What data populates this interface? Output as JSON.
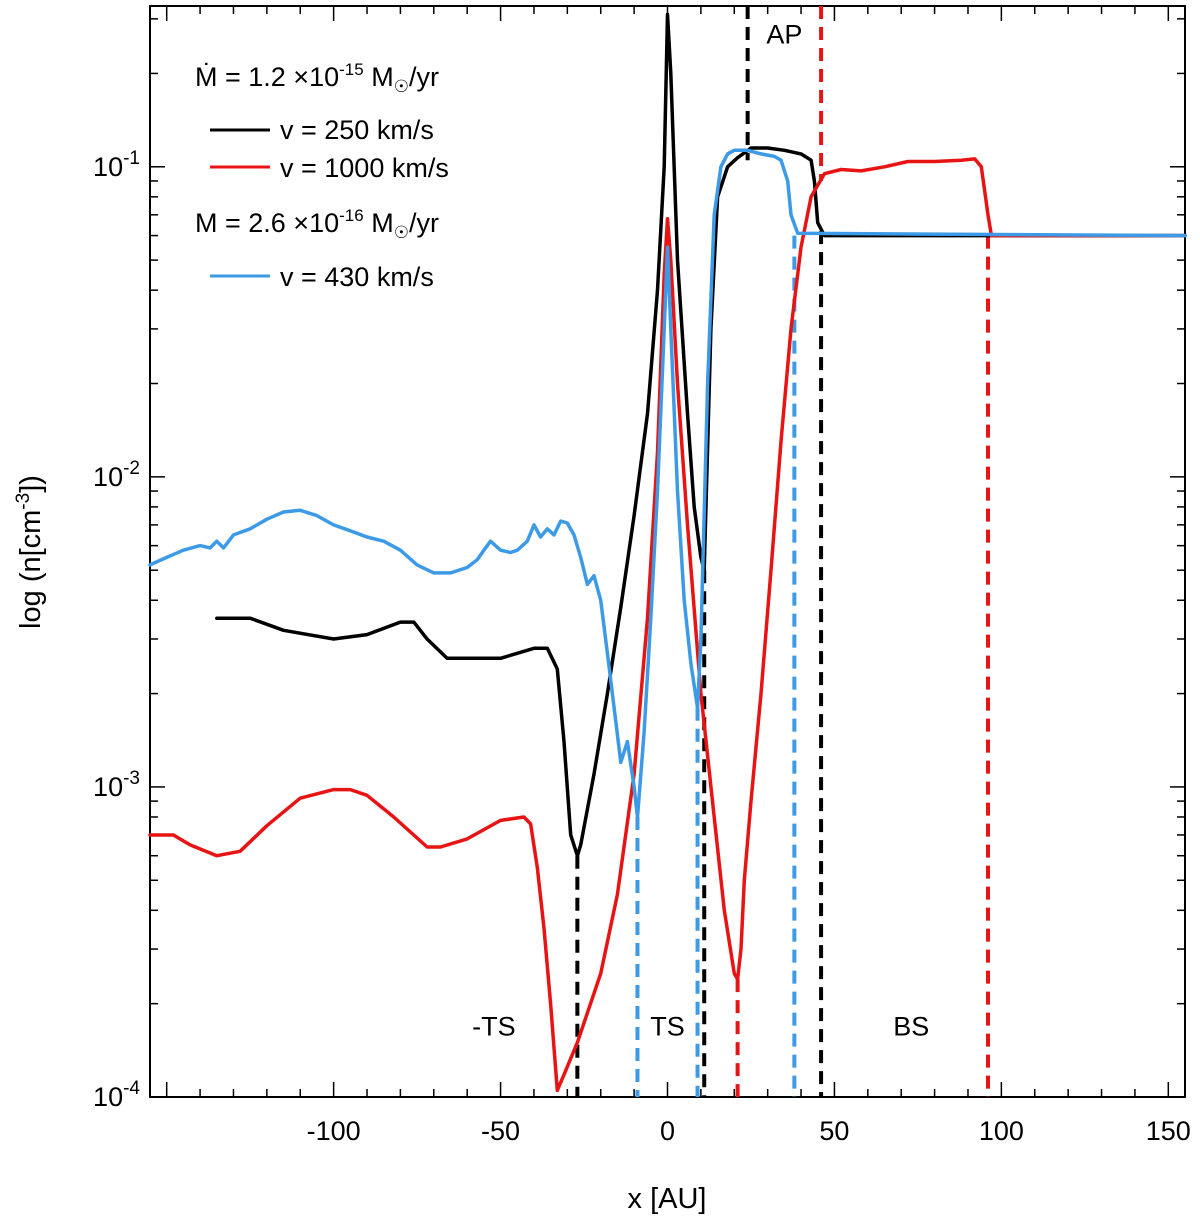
{
  "chart_data": {
    "type": "line",
    "xlabel": "x [AU]",
    "ylabel": "log (n[cm-3])",
    "ylabel_parts": {
      "main": "log (n[cm",
      "sup": "-3",
      "tail": "])"
    },
    "xlim": [
      -155,
      155
    ],
    "ylim": [
      0.0001,
      0.33
    ],
    "yscale": "log",
    "grid": false,
    "x_ticks": [
      -100,
      -50,
      0,
      50,
      100,
      150
    ],
    "x_tick_labels": [
      "-100",
      "-50",
      "0",
      "50",
      "100",
      "150"
    ],
    "y_ticks": [
      {
        "value": 0.1,
        "base": "10",
        "exp": "-1"
      },
      {
        "value": 0.01,
        "base": "10",
        "exp": "-2"
      },
      {
        "value": 0.001,
        "base": "10",
        "exp": "-3"
      },
      {
        "value": 0.0001,
        "base": "10",
        "exp": "-4"
      }
    ],
    "legend": {
      "position": "top-left",
      "groups": [
        {
          "prefix": "Ṁ = 1.2 ×10",
          "exp": "-15",
          "suffix": " M",
          "sun": "☉",
          "end": "/yr"
        },
        {
          "prefix": "M = 2.6 ×10",
          "exp": "-16",
          "suffix": " M",
          "sun": "☉",
          "end": "/yr"
        }
      ]
    },
    "series": [
      {
        "name": "v = 250 km/s",
        "color": "#000000",
        "points": [
          [
            -135,
            0.0035
          ],
          [
            -125,
            0.0035
          ],
          [
            -115,
            0.0032
          ],
          [
            -100,
            0.003
          ],
          [
            -90,
            0.0031
          ],
          [
            -80,
            0.0034
          ],
          [
            -76,
            0.0034
          ],
          [
            -72,
            0.003
          ],
          [
            -66,
            0.0026
          ],
          [
            -50,
            0.0026
          ],
          [
            -40,
            0.0028
          ],
          [
            -36,
            0.0028
          ],
          [
            -33,
            0.0024
          ],
          [
            -31,
            0.0014
          ],
          [
            -29,
            0.0007
          ],
          [
            -27,
            0.0006
          ],
          [
            -26,
            0.00065
          ],
          [
            -22,
            0.0011
          ],
          [
            -18,
            0.002
          ],
          [
            -14,
            0.0038
          ],
          [
            -10,
            0.0075
          ],
          [
            -6,
            0.016
          ],
          [
            -3,
            0.04
          ],
          [
            -1,
            0.1
          ],
          [
            0,
            0.31
          ],
          [
            1,
            0.2
          ],
          [
            3,
            0.05
          ],
          [
            6,
            0.016
          ],
          [
            8,
            0.008
          ],
          [
            10,
            0.0055
          ],
          [
            11,
            0.005
          ],
          [
            13,
            0.03
          ],
          [
            15,
            0.08
          ],
          [
            18,
            0.1
          ],
          [
            21,
            0.107
          ],
          [
            25,
            0.115
          ],
          [
            30,
            0.115
          ],
          [
            35,
            0.113
          ],
          [
            40,
            0.11
          ],
          [
            43,
            0.105
          ],
          [
            44,
            0.09
          ],
          [
            45,
            0.066
          ],
          [
            47,
            0.06
          ],
          [
            155,
            0.06
          ]
        ]
      },
      {
        "name": "v = 1000 km/s",
        "color": "#e81414",
        "points": [
          [
            -155,
            0.0007
          ],
          [
            -148,
            0.0007
          ],
          [
            -143,
            0.00065
          ],
          [
            -135,
            0.0006
          ],
          [
            -128,
            0.00062
          ],
          [
            -120,
            0.00075
          ],
          [
            -110,
            0.00092
          ],
          [
            -100,
            0.00098
          ],
          [
            -95,
            0.00098
          ],
          [
            -90,
            0.00094
          ],
          [
            -82,
            0.0008
          ],
          [
            -72,
            0.00064
          ],
          [
            -68,
            0.00064
          ],
          [
            -60,
            0.00068
          ],
          [
            -50,
            0.00078
          ],
          [
            -43,
            0.0008
          ],
          [
            -41,
            0.00076
          ],
          [
            -39,
            0.00055
          ],
          [
            -37,
            0.00035
          ],
          [
            -35,
            0.0002
          ],
          [
            -33,
            0.000105
          ],
          [
            -31,
            0.000118
          ],
          [
            -27,
            0.00015
          ],
          [
            -20,
            0.00025
          ],
          [
            -15,
            0.00045
          ],
          [
            -10,
            0.0011
          ],
          [
            -6,
            0.0035
          ],
          [
            -3,
            0.012
          ],
          [
            -1,
            0.045
          ],
          [
            0,
            0.068
          ],
          [
            1,
            0.05
          ],
          [
            3,
            0.02
          ],
          [
            6,
            0.007
          ],
          [
            10,
            0.002
          ],
          [
            14,
            0.0008
          ],
          [
            17,
            0.0004
          ],
          [
            20,
            0.00025
          ],
          [
            21,
            0.00024
          ],
          [
            22,
            0.0003
          ],
          [
            23,
            0.0005
          ],
          [
            25,
            0.0009
          ],
          [
            28,
            0.002
          ],
          [
            31,
            0.005
          ],
          [
            34,
            0.013
          ],
          [
            37,
            0.03
          ],
          [
            40,
            0.055
          ],
          [
            43,
            0.08
          ],
          [
            47,
            0.095
          ],
          [
            52,
            0.098
          ],
          [
            58,
            0.097
          ],
          [
            65,
            0.1
          ],
          [
            72,
            0.104
          ],
          [
            80,
            0.104
          ],
          [
            88,
            0.105
          ],
          [
            92,
            0.106
          ],
          [
            94,
            0.1
          ],
          [
            96,
            0.07
          ],
          [
            97,
            0.06
          ],
          [
            155,
            0.06
          ]
        ]
      },
      {
        "name": "v = 430 km/s",
        "color": "#3d9ae6",
        "points": [
          [
            -155,
            0.0052
          ],
          [
            -150,
            0.0055
          ],
          [
            -145,
            0.0058
          ],
          [
            -140,
            0.006
          ],
          [
            -137,
            0.0059
          ],
          [
            -135,
            0.0062
          ],
          [
            -133,
            0.0059
          ],
          [
            -130,
            0.0065
          ],
          [
            -125,
            0.0068
          ],
          [
            -120,
            0.0073
          ],
          [
            -115,
            0.0077
          ],
          [
            -110,
            0.0078
          ],
          [
            -105,
            0.0075
          ],
          [
            -100,
            0.007
          ],
          [
            -95,
            0.0067
          ],
          [
            -90,
            0.0064
          ],
          [
            -85,
            0.0062
          ],
          [
            -80,
            0.0058
          ],
          [
            -75,
            0.0052
          ],
          [
            -70,
            0.0049
          ],
          [
            -65,
            0.0049
          ],
          [
            -60,
            0.0051
          ],
          [
            -57,
            0.0054
          ],
          [
            -55,
            0.0058
          ],
          [
            -53,
            0.0062
          ],
          [
            -50,
            0.0058
          ],
          [
            -47,
            0.0057
          ],
          [
            -45,
            0.0058
          ],
          [
            -42,
            0.0062
          ],
          [
            -40,
            0.007
          ],
          [
            -38,
            0.0064
          ],
          [
            -36,
            0.0068
          ],
          [
            -34,
            0.0065
          ],
          [
            -32,
            0.0072
          ],
          [
            -30,
            0.0071
          ],
          [
            -28,
            0.0065
          ],
          [
            -26,
            0.0055
          ],
          [
            -24,
            0.0045
          ],
          [
            -22,
            0.0048
          ],
          [
            -20,
            0.004
          ],
          [
            -18,
            0.0027
          ],
          [
            -16,
            0.0018
          ],
          [
            -14,
            0.0012
          ],
          [
            -12,
            0.0014
          ],
          [
            -10,
            0.001
          ],
          [
            -9,
            0.0008
          ],
          [
            -7,
            0.0015
          ],
          [
            -5,
            0.0035
          ],
          [
            -3,
            0.009
          ],
          [
            -1,
            0.03
          ],
          [
            0,
            0.055
          ],
          [
            1,
            0.03
          ],
          [
            3,
            0.009
          ],
          [
            5,
            0.004
          ],
          [
            7,
            0.0025
          ],
          [
            9,
            0.0018
          ],
          [
            10,
            0.003
          ],
          [
            12,
            0.02
          ],
          [
            14,
            0.07
          ],
          [
            16,
            0.1
          ],
          [
            18,
            0.11
          ],
          [
            20,
            0.113
          ],
          [
            24,
            0.113
          ],
          [
            28,
            0.11
          ],
          [
            32,
            0.108
          ],
          [
            34,
            0.105
          ],
          [
            36,
            0.09
          ],
          [
            37,
            0.07
          ],
          [
            39,
            0.061
          ],
          [
            155,
            0.06
          ]
        ]
      }
    ],
    "vlines": [
      {
        "x": -27,
        "color": "#000000",
        "from": 0.0001,
        "to": 0.0006
      },
      {
        "x": 11,
        "color": "#000000",
        "from": 0.0001,
        "to": 0.005
      },
      {
        "x": 24,
        "color": "#000000",
        "from": 0.105,
        "to": 0.33
      },
      {
        "x": 46,
        "color": "#000000",
        "from": 0.0001,
        "to": 0.062
      },
      {
        "x": -9,
        "color": "#3d9ae6",
        "from": 0.0001,
        "to": 0.0008
      },
      {
        "x": 9,
        "color": "#3d9ae6",
        "from": 0.0001,
        "to": 0.0018
      },
      {
        "x": 38,
        "color": "#3d9ae6",
        "from": 0.0001,
        "to": 0.06
      },
      {
        "x": 21,
        "color": "#e81414",
        "from": 0.0001,
        "to": 0.00024
      },
      {
        "x": 46,
        "color": "#e81414",
        "from": 0.09,
        "to": 0.33
      },
      {
        "x": 96,
        "color": "#e81414",
        "from": 0.0001,
        "to": 0.06
      }
    ],
    "annotations": [
      {
        "text": "AP",
        "x": 35,
        "y": 0.25
      },
      {
        "text": "-TS",
        "x": -52,
        "y": 0.000158
      },
      {
        "text": "TS",
        "x": 0,
        "y": 0.000158
      },
      {
        "text": "BS",
        "x": 73,
        "y": 0.000158
      }
    ]
  }
}
